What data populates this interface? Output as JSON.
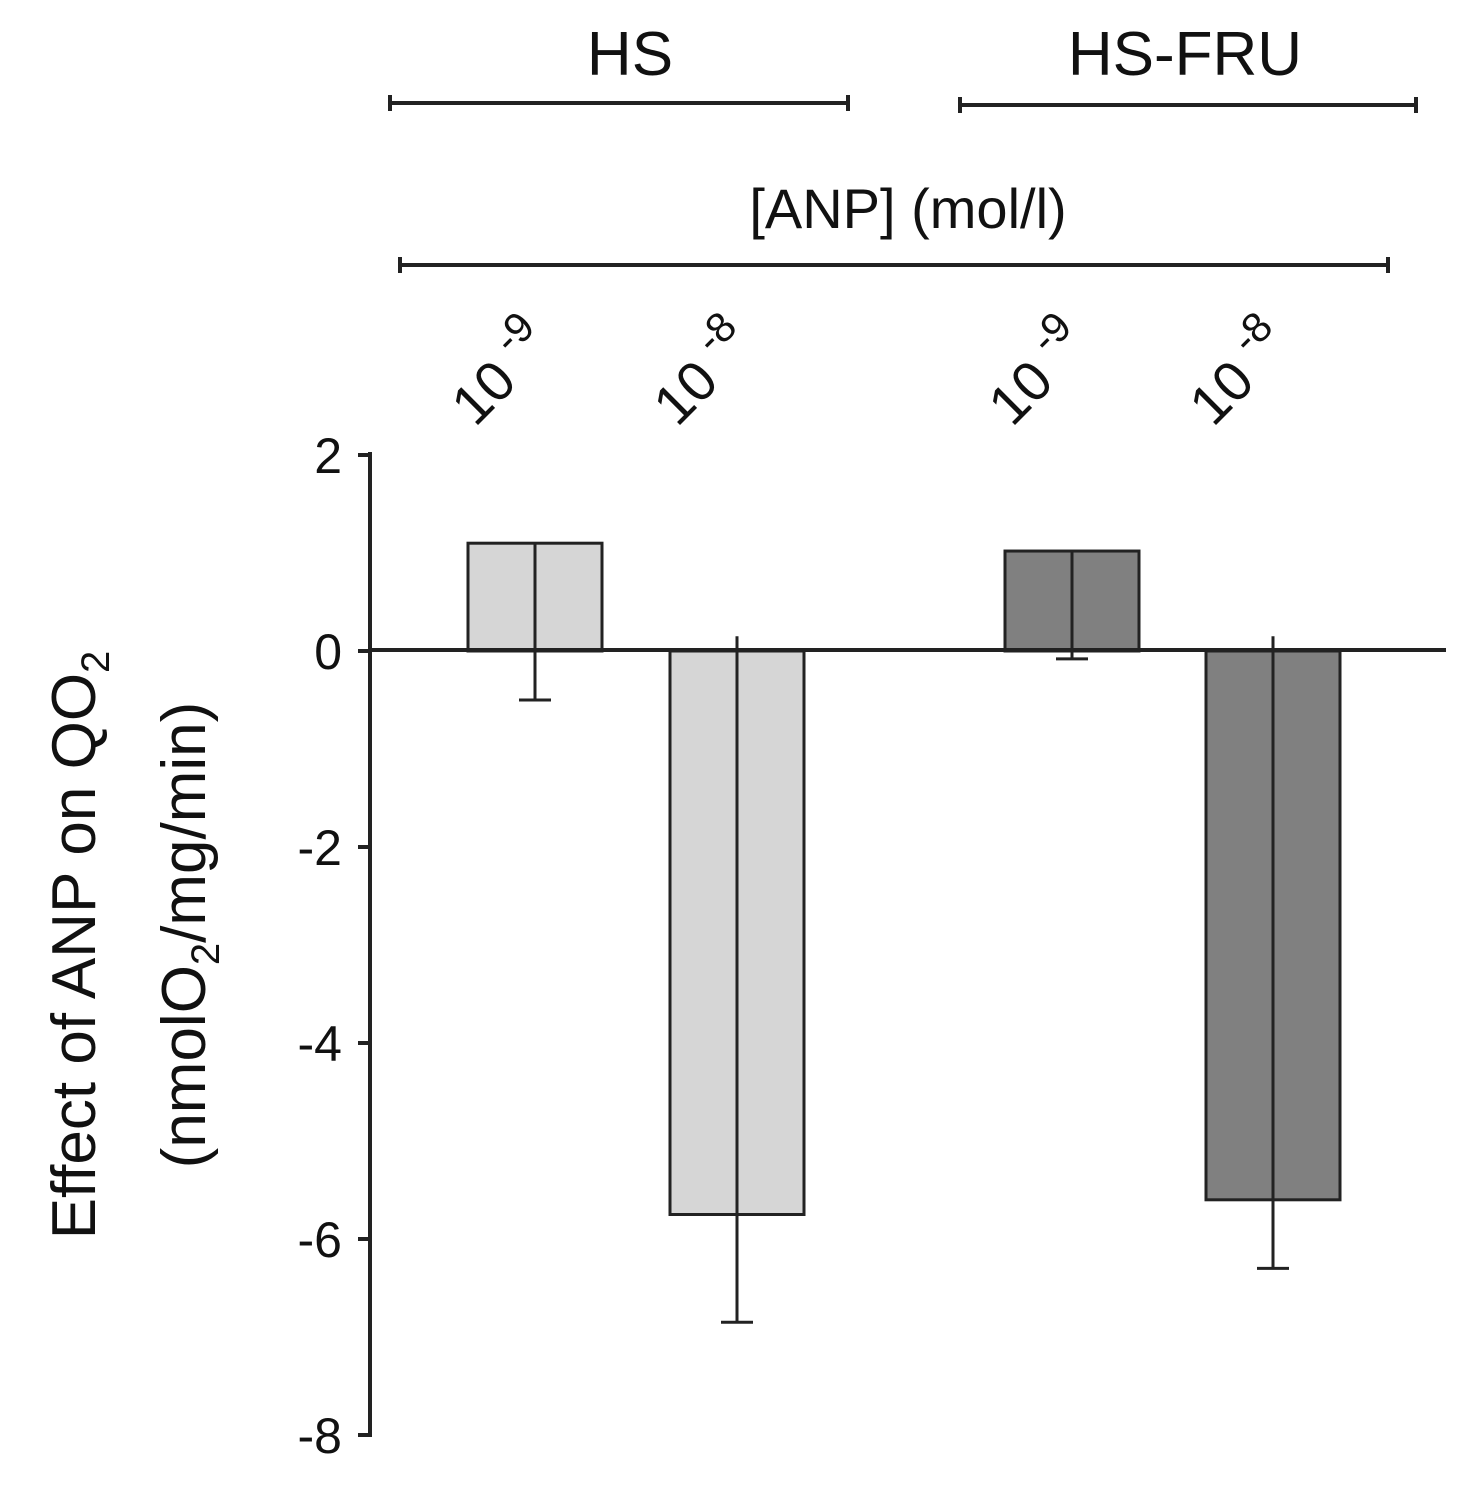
{
  "chart_data": {
    "type": "bar",
    "ylabel_line1": "Effect of ANP on QO",
    "ylabel_line1_sub": "2",
    "ylabel_line2_pre": "(nmolO",
    "ylabel_line2_sub": "2",
    "ylabel_line2_post": "/mg/min)",
    "ylim": [
      -8,
      2
    ],
    "yticks": [
      2,
      0,
      -2,
      -4,
      -6,
      -8
    ],
    "grid": false,
    "concentration_axis_label": "[ANP] (mol/l)",
    "groups": [
      {
        "name": "HS",
        "color": "#d6d6d6"
      },
      {
        "name": "HS-FRU",
        "color": "#808080"
      }
    ],
    "bars": [
      {
        "group": "HS",
        "base": "10",
        "exponent": "-9",
        "value": 1.1,
        "error_low": -0.5,
        "error_high": 1.1
      },
      {
        "group": "HS",
        "base": "10",
        "exponent": "-8",
        "value": -5.75,
        "error_low": -6.85,
        "error_high": 0.15
      },
      {
        "group": "HS-FRU",
        "base": "10",
        "exponent": "-9",
        "value": 1.02,
        "error_low": -0.08,
        "error_high": 1.02
      },
      {
        "group": "HS-FRU",
        "base": "10",
        "exponent": "-8",
        "value": -5.6,
        "error_low": -6.3,
        "error_high": 0.15
      }
    ]
  }
}
